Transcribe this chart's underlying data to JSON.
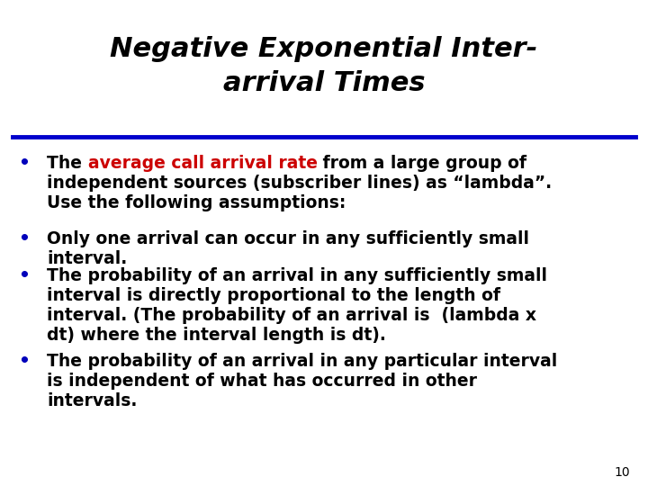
{
  "title_line1": "Negative Exponential Inter-",
  "title_line2": "arrival Times",
  "title_color": "#000000",
  "title_fontsize": 22,
  "title_fontstyle": "italic",
  "title_fontweight": "bold",
  "separator_color": "#0000CC",
  "bullet_color": "#0000BB",
  "bullet_char": "•",
  "body_fontsize": 13.5,
  "red_color": "#CC0000",
  "black_color": "#000000",
  "page_number": "10",
  "background_color": "#FFFFFF",
  "bullet1_line1_black1": "The ",
  "bullet1_line1_red": "average call arrival rate",
  "bullet1_line1_black2": " from a large group of",
  "bullet1_line2": "independent sources (subscriber lines) as “lambda”.",
  "bullet1_line3": "Use the following assumptions:",
  "bullet2_line1": "Only one arrival can occur in any sufficiently small",
  "bullet2_line2": "interval.",
  "bullet3_line1": "The probability of an arrival in any sufficiently small",
  "bullet3_line2": "interval is directly proportional to the length of",
  "bullet3_line3": "interval. (The probability of an arrival is  (lambda x",
  "bullet3_line4": "dt) where the interval length is dt).",
  "bullet4_line1": "The probability of an arrival in any particular interval",
  "bullet4_line2": "is independent of what has occurred in other",
  "bullet4_line3": "intervals."
}
